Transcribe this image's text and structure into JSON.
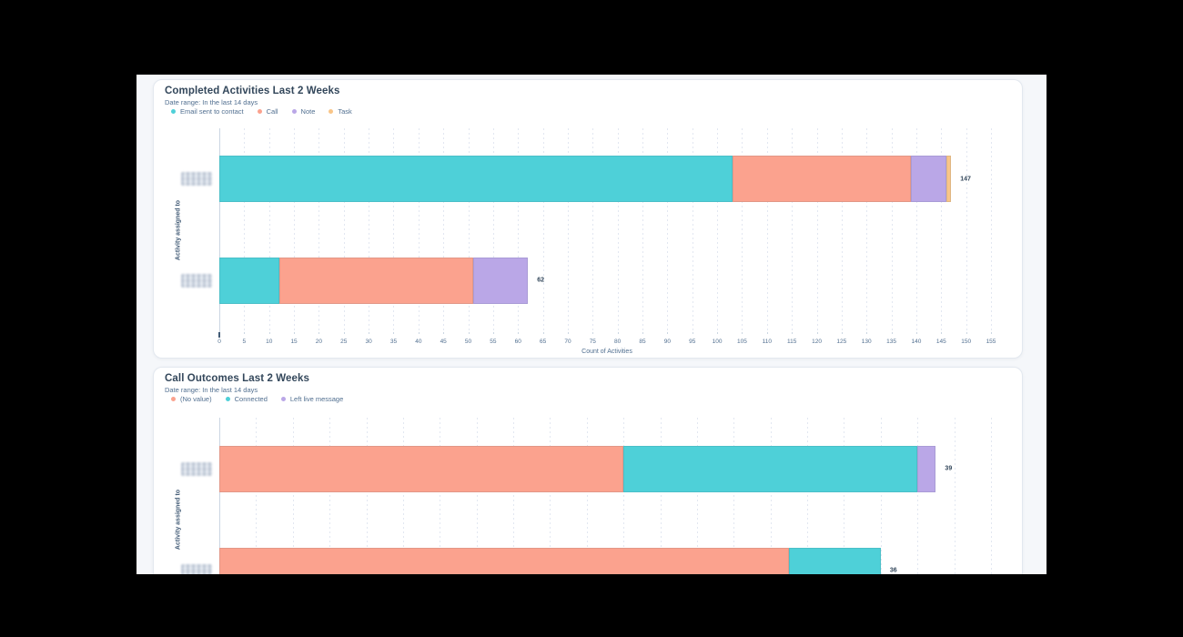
{
  "page": {
    "background": "#f5f7fa",
    "letterbox": "#000000"
  },
  "colors": {
    "title_text": "#33475b",
    "muted_text": "#516f90",
    "axis_line": "#cbd6e2",
    "grid_line": "#e2e7f1",
    "card_border": "#e3e8ef",
    "redacted_block": "#d9dee6"
  },
  "chart_data": [
    {
      "type": "bar",
      "stacked": true,
      "orientation": "horizontal",
      "title": "Completed Activities Last 2 Weeks",
      "subtitle": "Date range: In the last 14 days",
      "xlabel": "Count of Activities",
      "ylabel": "Activity assigned to",
      "categories": [
        "",
        ""
      ],
      "categories_redacted": true,
      "series": [
        {
          "name": "Email sent to contact",
          "color": "#4ed0d8",
          "values": [
            103,
            12
          ]
        },
        {
          "name": "Call",
          "color": "#fba28e",
          "values": [
            36,
            39
          ]
        },
        {
          "name": "Note",
          "color": "#baa7e7",
          "values": [
            7,
            11
          ]
        },
        {
          "name": "Task",
          "color": "#f9c588",
          "values": [
            1,
            0
          ]
        }
      ],
      "totals": [
        147,
        62
      ],
      "xlim": [
        0,
        155
      ],
      "xtick_step": 5,
      "show_x_axis": true,
      "grid": true,
      "legend_position": "top"
    },
    {
      "type": "bar",
      "stacked": true,
      "orientation": "horizontal",
      "title": "Call Outcomes Last 2 Weeks",
      "subtitle": "Date range: In the last 14 days",
      "xlabel": "",
      "ylabel": "Activity assigned to",
      "categories": [
        "",
        ""
      ],
      "categories_redacted": true,
      "series": [
        {
          "name": "(No value)",
          "color": "#fba28e",
          "values": [
            22,
            31
          ]
        },
        {
          "name": "Connected",
          "color": "#4ed0d8",
          "values": [
            16,
            5
          ]
        },
        {
          "name": "Left live message",
          "color": "#baa7e7",
          "values": [
            1,
            0
          ]
        }
      ],
      "totals": [
        39,
        36
      ],
      "xlim": [
        0,
        42
      ],
      "xtick_step": 2,
      "show_x_axis": false,
      "grid": true,
      "legend_position": "top"
    }
  ]
}
